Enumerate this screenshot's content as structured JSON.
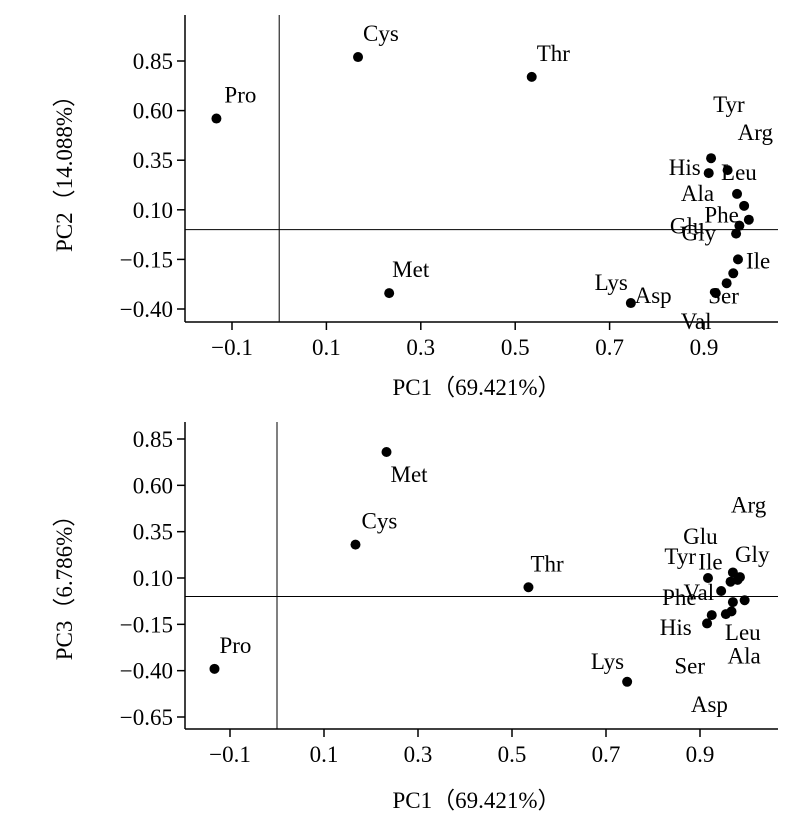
{
  "chart_data": [
    {
      "type": "scatter",
      "xlabel": "PC1（69.421%）",
      "ylabel": "PC2（14.088%）",
      "xlim": [
        -0.18,
        1.04
      ],
      "ylim": [
        -0.46,
        1.08
      ],
      "xticks": [
        -0.1,
        0.1,
        0.3,
        0.5,
        0.7,
        0.9
      ],
      "xtick_labels": [
        "−0.1",
        "0.1",
        "0.3",
        "0.5",
        "0.7",
        "0.9"
      ],
      "yticks": [
        0.85,
        0.6,
        0.35,
        0.1,
        -0.15,
        -0.4
      ],
      "ytick_labels": [
        "0.85",
        "0.60",
        "0.35",
        "0.10",
        "−0.15",
        "−0.40"
      ],
      "reference_lines": {
        "x": 0,
        "y": 0
      },
      "points": [
        {
          "label": "Cys",
          "x": 0.167,
          "y": 0.87
        },
        {
          "label": "Thr",
          "x": 0.535,
          "y": 0.77
        },
        {
          "label": "Pro",
          "x": -0.133,
          "y": 0.56
        },
        {
          "label": "Met",
          "x": 0.233,
          "y": -0.32
        },
        {
          "label": "Lys",
          "x": 0.745,
          "y": -0.37
        },
        {
          "label": "Tyr",
          "x": 0.915,
          "y": 0.36
        },
        {
          "label": "Arg",
          "x": 0.95,
          "y": 0.3
        },
        {
          "label": "His",
          "x": 0.91,
          "y": 0.285
        },
        {
          "label": "Leu",
          "x": 0.97,
          "y": 0.18
        },
        {
          "label": "Ala",
          "x": 0.985,
          "y": 0.12
        },
        {
          "label": "Phe",
          "x": 0.995,
          "y": 0.05
        },
        {
          "label": "Glu",
          "x": 0.975,
          "y": 0.02
        },
        {
          "label": "Gly",
          "x": 0.968,
          "y": -0.02
        },
        {
          "label": "Ile",
          "x": 0.972,
          "y": -0.15
        },
        {
          "label": "Ser",
          "x": 0.962,
          "y": -0.22
        },
        {
          "label": "Asp",
          "x": 0.948,
          "y": -0.27
        },
        {
          "label": "Val",
          "x": 0.925,
          "y": -0.32
        }
      ]
    },
    {
      "type": "scatter",
      "xlabel": "PC1（69.421%）",
      "ylabel": "PC3（6.786%）",
      "xlim": [
        -0.18,
        1.04
      ],
      "ylim": [
        -0.7,
        0.93
      ],
      "xticks": [
        -0.1,
        0.1,
        0.3,
        0.5,
        0.7,
        0.9
      ],
      "xtick_labels": [
        "−0.1",
        "0.1",
        "0.3",
        "0.5",
        "0.7",
        "0.9"
      ],
      "yticks": [
        0.85,
        0.6,
        0.35,
        0.1,
        -0.15,
        -0.4,
        -0.65
      ],
      "ytick_labels": [
        "0.85",
        "0.60",
        "0.35",
        "0.10",
        "−0.15",
        "−0.40",
        "−0.65"
      ],
      "reference_lines": {
        "x": 0,
        "y": 0
      },
      "points": [
        {
          "label": "Met",
          "x": 0.233,
          "y": 0.78
        },
        {
          "label": "Cys",
          "x": 0.167,
          "y": 0.28
        },
        {
          "label": "Thr",
          "x": 0.535,
          "y": 0.05
        },
        {
          "label": "Pro",
          "x": -0.133,
          "y": -0.39
        },
        {
          "label": "Lys",
          "x": 0.745,
          "y": -0.46
        },
        {
          "label": "Arg",
          "x": 0.97,
          "y": 0.13
        },
        {
          "label": "Gly",
          "x": 0.985,
          "y": 0.105
        },
        {
          "label": "Tyr",
          "x": 0.917,
          "y": 0.1
        },
        {
          "label": "Ile",
          "x": 0.965,
          "y": 0.08
        },
        {
          "label": "Glu",
          "x": 0.98,
          "y": 0.09
        },
        {
          "label": "Val",
          "x": 0.945,
          "y": 0.03
        },
        {
          "label": "Phe",
          "x": 0.995,
          "y": -0.02
        },
        {
          "label": "Leu",
          "x": 0.97,
          "y": -0.03
        },
        {
          "label": "His",
          "x": 0.925,
          "y": -0.1
        },
        {
          "label": "Ala",
          "x": 0.967,
          "y": -0.08
        },
        {
          "label": "Asp",
          "x": 0.955,
          "y": -0.095
        },
        {
          "label": "Ser",
          "x": 0.915,
          "y": -0.145
        }
      ]
    }
  ]
}
